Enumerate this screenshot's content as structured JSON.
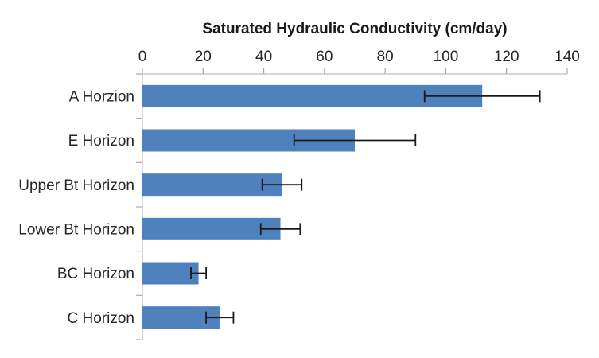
{
  "chart_data": {
    "type": "bar",
    "orientation": "horizontal",
    "title": "Saturated Hydraulic Conductivity (cm/day)",
    "categories": [
      "A Horzion",
      "E Horizon",
      "Upper Bt Horizon",
      "Lower Bt Horizon",
      "BC Horizon",
      "C Horizon"
    ],
    "values": [
      112,
      70,
      46,
      45.5,
      18.5,
      25.5
    ],
    "errors": [
      19,
      20,
      6.5,
      6.5,
      2.5,
      4.5
    ],
    "x_axis": {
      "min": 0,
      "max": 140,
      "tick_step": 20,
      "tick_labels": [
        "0",
        "20",
        "40",
        "60",
        "80",
        "100",
        "120",
        "140"
      ],
      "position": "top"
    },
    "bar_color": "#4F81BD",
    "error_bar_color": "#1a1a1a",
    "axis_line_color": "#BFBFBF",
    "tick_color": "#A6A6A6",
    "text_color": "#262626",
    "background": "#FFFFFF",
    "grid": false,
    "legend": false
  }
}
